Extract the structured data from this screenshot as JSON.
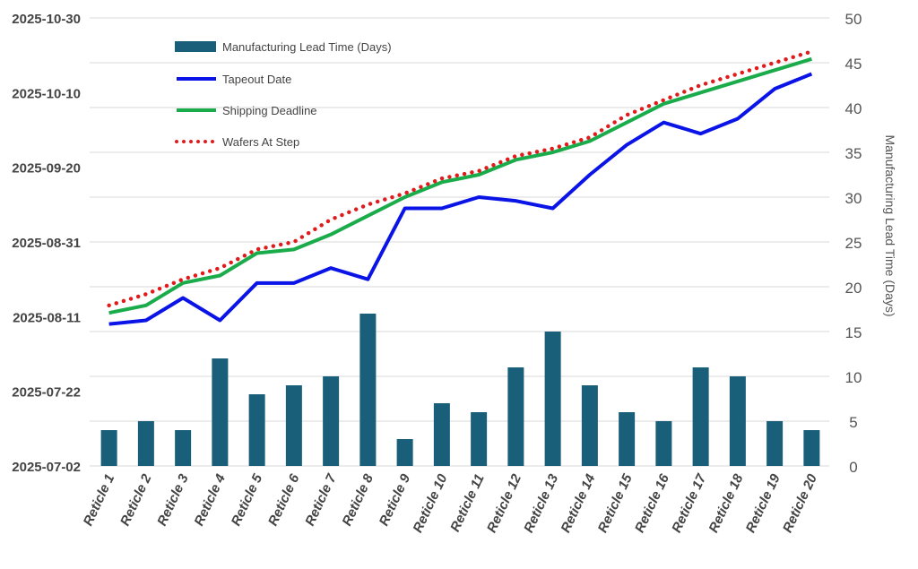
{
  "chart_data": {
    "type": "bar+line",
    "categories": [
      "Reticle 1",
      "Reticle 2",
      "Reticle 3",
      "Reticle 4",
      "Reticle 5",
      "Reticle 6",
      "Reticle 7",
      "Reticle 8",
      "Reticle 9",
      "Reticle 10",
      "Reticle 11",
      "Reticle 12",
      "Reticle 13",
      "Reticle 14",
      "Reticle 15",
      "Reticle 16",
      "Reticle 17",
      "Reticle 18",
      "Reticle 19",
      "Reticle 20"
    ],
    "left_axis": {
      "ticks": [
        "2025-07-02",
        "2025-07-22",
        "2025-08-11",
        "2025-08-31",
        "2025-09-20",
        "2025-10-10",
        "2025-10-30"
      ],
      "range": [
        "2025-07-02",
        "2025-10-30"
      ]
    },
    "right_axis": {
      "label": "Manufacturing Lead Time (Days)",
      "ticks": [
        0,
        5,
        10,
        15,
        20,
        25,
        30,
        35,
        40,
        45,
        50
      ],
      "range": [
        0,
        50
      ]
    },
    "grid": true,
    "legend_placement": "top-left",
    "bar_series": {
      "name": "Manufacturing Lead Time (Days)",
      "axis": "right",
      "color": "#1a5f7a",
      "values": [
        4,
        5,
        4,
        12,
        8,
        9,
        10,
        17,
        3,
        7,
        6,
        11,
        15,
        9,
        6,
        5,
        11,
        10,
        5,
        4
      ]
    },
    "line_series": [
      {
        "name": "Tapeout Date",
        "axis": "left",
        "color": "#0a14e6",
        "style": "solid",
        "values": [
          "2025-08-09",
          "2025-08-10",
          "2025-08-16",
          "2025-08-10",
          "2025-08-20",
          "2025-08-20",
          "2025-08-24",
          "2025-08-21",
          "2025-09-09",
          "2025-09-09",
          "2025-09-12",
          "2025-09-11",
          "2025-09-09",
          "2025-09-18",
          "2025-09-26",
          "2025-10-02",
          "2025-09-29",
          "2025-10-03",
          "2025-10-11",
          "2025-10-15"
        ]
      },
      {
        "name": "Shipping Deadline",
        "axis": "left",
        "color": "#1aab4b",
        "style": "solid",
        "values": [
          "2025-08-12",
          "2025-08-14",
          "2025-08-20",
          "2025-08-22",
          "2025-08-28",
          "2025-08-29",
          "2025-09-02",
          "2025-09-07",
          "2025-09-12",
          "2025-09-16",
          "2025-09-18",
          "2025-09-22",
          "2025-09-24",
          "2025-09-27",
          "2025-10-02",
          "2025-10-07",
          "2025-10-10",
          "2025-10-13",
          "2025-10-16",
          "2025-10-19"
        ]
      },
      {
        "name": "Wafers At Step",
        "axis": "left",
        "color": "#e01b1b",
        "style": "dotted",
        "values": [
          "2025-08-14",
          "2025-08-17",
          "2025-08-21",
          "2025-08-24",
          "2025-08-29",
          "2025-08-31",
          "2025-09-06",
          "2025-09-10",
          "2025-09-13",
          "2025-09-17",
          "2025-09-19",
          "2025-09-23",
          "2025-09-25",
          "2025-09-28",
          "2025-10-04",
          "2025-10-08",
          "2025-10-12",
          "2025-10-15",
          "2025-10-18",
          "2025-10-21"
        ]
      }
    ]
  }
}
